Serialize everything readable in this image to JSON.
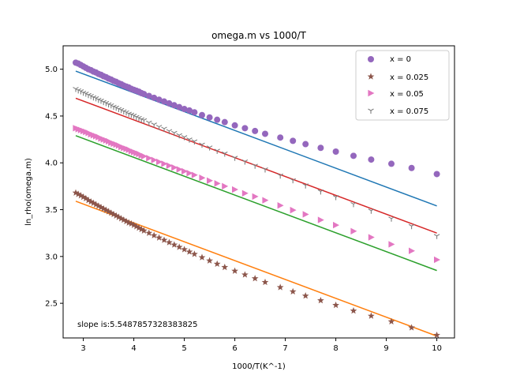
{
  "chart_data": {
    "type": "scatter",
    "title": "omega.m vs 1000/T",
    "xlabel": "1000/T(K^-1)",
    "ylabel": "ln_rho(omega.m)",
    "xlim": [
      2.6,
      10.35
    ],
    "ylim": [
      2.13,
      5.25
    ],
    "xticks": [
      3,
      4,
      5,
      6,
      7,
      8,
      9,
      10
    ],
    "yticks": [
      2.5,
      3.0,
      3.5,
      4.0,
      4.5,
      5.0
    ],
    "xtick_labels": [
      "3",
      "4",
      "5",
      "6",
      "7",
      "8",
      "9",
      "10"
    ],
    "ytick_labels": [
      "2.5",
      "3.0",
      "3.5",
      "4.0",
      "4.5",
      "5.0"
    ],
    "grid": false,
    "legend_position": "top-right",
    "annotation": "slope is:5.5487857328383825",
    "x": [
      2.85,
      2.9,
      2.95,
      3.0,
      3.05,
      3.1,
      3.15,
      3.2,
      3.25,
      3.3,
      3.35,
      3.4,
      3.45,
      3.5,
      3.55,
      3.6,
      3.65,
      3.7,
      3.75,
      3.8,
      3.85,
      3.9,
      3.95,
      4.0,
      4.05,
      4.1,
      4.15,
      4.2,
      4.3,
      4.4,
      4.5,
      4.6,
      4.7,
      4.8,
      4.9,
      5.0,
      5.1,
      5.2,
      5.35,
      5.5,
      5.65,
      5.8,
      6.0,
      6.2,
      6.4,
      6.6,
      6.9,
      7.15,
      7.4,
      7.7,
      8.0,
      8.35,
      8.7,
      9.1,
      9.5,
      10.0
    ],
    "series": [
      {
        "name": "x = 0",
        "marker": "circle",
        "color": "#9467bd",
        "values": [
          5.07,
          5.06,
          5.045,
          5.03,
          5.015,
          5.0,
          4.99,
          4.975,
          4.965,
          4.95,
          4.94,
          4.925,
          4.915,
          4.9,
          4.89,
          4.875,
          4.865,
          4.85,
          4.84,
          4.825,
          4.815,
          4.805,
          4.79,
          4.78,
          4.77,
          4.76,
          4.745,
          4.735,
          4.715,
          4.695,
          4.675,
          4.655,
          4.635,
          4.615,
          4.595,
          4.575,
          4.56,
          4.54,
          4.51,
          4.485,
          4.46,
          4.435,
          4.4,
          4.37,
          4.34,
          4.31,
          4.27,
          4.235,
          4.2,
          4.16,
          4.12,
          4.075,
          4.035,
          3.99,
          3.945,
          3.88
        ]
      },
      {
        "name": "x = 0.025",
        "marker": "star",
        "color": "#8c564b",
        "values": [
          3.68,
          3.665,
          3.65,
          3.635,
          3.62,
          3.6,
          3.585,
          3.57,
          3.555,
          3.54,
          3.525,
          3.51,
          3.495,
          3.48,
          3.465,
          3.45,
          3.435,
          3.42,
          3.405,
          3.39,
          3.375,
          3.36,
          3.35,
          3.335,
          3.32,
          3.305,
          3.29,
          3.275,
          3.25,
          3.225,
          3.2,
          3.175,
          3.15,
          3.125,
          3.1,
          3.075,
          3.05,
          3.025,
          2.99,
          2.955,
          2.92,
          2.885,
          2.845,
          2.805,
          2.765,
          2.725,
          2.67,
          2.625,
          2.58,
          2.53,
          2.48,
          2.42,
          2.365,
          2.305,
          2.24,
          2.16
        ]
      },
      {
        "name": "x = 0.05",
        "marker": "triangle-right",
        "color": "#e377c2",
        "values": [
          4.37,
          4.36,
          4.35,
          4.34,
          4.33,
          4.32,
          4.305,
          4.295,
          4.285,
          4.275,
          4.26,
          4.25,
          4.24,
          4.23,
          4.215,
          4.205,
          4.195,
          4.185,
          4.17,
          4.16,
          4.15,
          4.14,
          4.125,
          4.115,
          4.105,
          4.095,
          4.08,
          4.07,
          4.05,
          4.03,
          4.01,
          3.99,
          3.97,
          3.95,
          3.93,
          3.91,
          3.89,
          3.87,
          3.84,
          3.81,
          3.78,
          3.75,
          3.715,
          3.675,
          3.64,
          3.6,
          3.545,
          3.495,
          3.45,
          3.39,
          3.335,
          3.27,
          3.205,
          3.13,
          3.06,
          2.965
        ]
      },
      {
        "name": "x = 0.075",
        "marker": "tri-down",
        "color": "#7f7f7f",
        "values": [
          4.79,
          4.775,
          4.765,
          4.75,
          4.74,
          4.725,
          4.715,
          4.7,
          4.69,
          4.675,
          4.665,
          4.65,
          4.64,
          4.625,
          4.615,
          4.6,
          4.59,
          4.575,
          4.565,
          4.55,
          4.54,
          4.525,
          4.515,
          4.505,
          4.49,
          4.48,
          4.465,
          4.455,
          4.43,
          4.41,
          4.385,
          4.365,
          4.34,
          4.32,
          4.295,
          4.275,
          4.25,
          4.23,
          4.195,
          4.165,
          4.13,
          4.1,
          4.055,
          4.015,
          3.97,
          3.93,
          3.865,
          3.815,
          3.76,
          3.695,
          3.635,
          3.56,
          3.49,
          3.405,
          3.325,
          3.22
        ]
      }
    ],
    "fit_lines": [
      {
        "color": "#1f77b4",
        "x": [
          2.85,
          10.0
        ],
        "y": [
          4.98,
          3.54
        ]
      },
      {
        "color": "#ff7f0e",
        "x": [
          2.85,
          10.0
        ],
        "y": [
          3.59,
          2.15
        ]
      },
      {
        "color": "#2ca02c",
        "x": [
          2.85,
          10.0
        ],
        "y": [
          4.29,
          2.85
        ]
      },
      {
        "color": "#d62728",
        "x": [
          2.85,
          10.0
        ],
        "y": [
          4.69,
          3.25
        ]
      }
    ]
  }
}
